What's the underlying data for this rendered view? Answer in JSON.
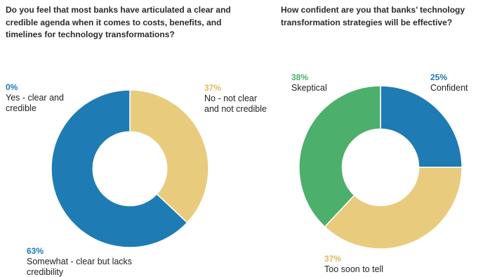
{
  "colors": {
    "blue": "#1f7bb3",
    "gold": "#e8cb7d",
    "green": "#4caf6b",
    "gold_text": "#dcb95e"
  },
  "chart_data": [
    {
      "type": "pie",
      "donut": true,
      "title": "Do you feel that most banks have articulated a clear and credible agenda when it comes to costs, benefits, and timelines for technology transformations?",
      "start": "12 o'clock, clockwise",
      "slices": [
        {
          "label_lines": [
            "No - not clear",
            "and not credible"
          ],
          "value": 37,
          "percent": "37%",
          "color": "#e8cb7d",
          "label_color": "#dcb95e"
        },
        {
          "label_lines": [
            "Somewhat - clear but lacks",
            "credibility"
          ],
          "value": 63,
          "percent": "63%",
          "color": "#1f7bb3",
          "label_color": "#1f7bb3"
        },
        {
          "label_lines": [
            "Yes - clear and",
            "credible"
          ],
          "value": 0,
          "percent": "0%",
          "color": "#1f7bb3",
          "label_color": "#1f7bb3"
        }
      ]
    },
    {
      "type": "pie",
      "donut": true,
      "title": "How confident are you that banks’ technology transformation strategies will be effective?",
      "start": "12 o'clock, clockwise",
      "slices": [
        {
          "label_lines": [
            "Confident"
          ],
          "value": 25,
          "percent": "25%",
          "color": "#1f7bb3",
          "label_color": "#1f7bb3"
        },
        {
          "label_lines": [
            "Too soon to tell"
          ],
          "value": 37,
          "percent": "37%",
          "color": "#e8cb7d",
          "label_color": "#dcb95e"
        },
        {
          "label_lines": [
            "Skeptical"
          ],
          "value": 38,
          "percent": "38%",
          "color": "#4caf6b",
          "label_color": "#4caf6b"
        }
      ]
    }
  ]
}
